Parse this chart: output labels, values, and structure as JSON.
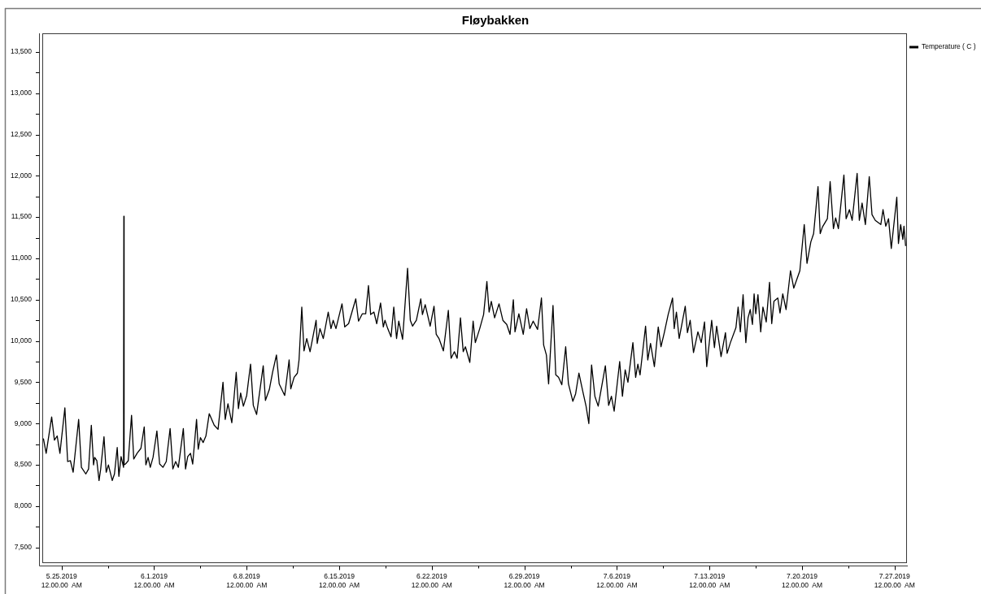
{
  "chart_data": {
    "type": "line",
    "title": "Fløybakken",
    "legend": "top right",
    "marker": "none",
    "line_style": "solid",
    "xlim": [
      "2019-05-23T13:00",
      "2019-07-27T21:00"
    ],
    "ylim": [
      7320,
      13725
    ],
    "xticks": [
      {
        "value": "2019-05-25",
        "label": "5.25.2019\n12.00.00  AM"
      },
      {
        "value": "2019-05-28T12:00",
        "label": null
      },
      {
        "value": "2019-06-01",
        "label": "6.1.2019\n12.00.00  AM"
      },
      {
        "value": "2019-06-04T12:00",
        "label": null
      },
      {
        "value": "2019-06-08",
        "label": "6.8.2019\n12.00.00  AM"
      },
      {
        "value": "2019-06-11T12:00",
        "label": null
      },
      {
        "value": "2019-06-15",
        "label": "6.15.2019\n12.00.00  AM"
      },
      {
        "value": "2019-06-18T12:00",
        "label": null
      },
      {
        "value": "2019-06-22",
        "label": "6.22.2019\n12.00.00  AM"
      },
      {
        "value": "2019-06-25T12:00",
        "label": null
      },
      {
        "value": "2019-06-29",
        "label": "6.29.2019\n12.00.00  AM"
      },
      {
        "value": "2019-07-02T12:00",
        "label": null
      },
      {
        "value": "2019-07-06",
        "label": "7.6.2019\n12.00.00  AM"
      },
      {
        "value": "2019-07-09T12:00",
        "label": null
      },
      {
        "value": "2019-07-13",
        "label": "7.13.2019\n12.00.00  AM"
      },
      {
        "value": "2019-07-16T12:00",
        "label": null
      },
      {
        "value": "2019-07-20",
        "label": "7.20.2019\n12.00.00  AM"
      },
      {
        "value": "2019-07-23T12:00",
        "label": null
      },
      {
        "value": "2019-07-27",
        "label": "7.27.2019\n12.00.00  AM"
      }
    ],
    "yticks": [
      {
        "value": 7500,
        "label": "7,500"
      },
      {
        "value": 7750,
        "label": null
      },
      {
        "value": 8000,
        "label": "8,000"
      },
      {
        "value": 8250,
        "label": null
      },
      {
        "value": 8500,
        "label": "8,500"
      },
      {
        "value": 8750,
        "label": null
      },
      {
        "value": 9000,
        "label": "9,000"
      },
      {
        "value": 9250,
        "label": null
      },
      {
        "value": 9500,
        "label": "9,500"
      },
      {
        "value": 9750,
        "label": null
      },
      {
        "value": 10000,
        "label": "10,000"
      },
      {
        "value": 10250,
        "label": null
      },
      {
        "value": 10500,
        "label": "10,500"
      },
      {
        "value": 10750,
        "label": null
      },
      {
        "value": 11000,
        "label": "11,000"
      },
      {
        "value": 11250,
        "label": null
      },
      {
        "value": 11500,
        "label": "11,500"
      },
      {
        "value": 11750,
        "label": null
      },
      {
        "value": 12000,
        "label": "12,000"
      },
      {
        "value": 12250,
        "label": null
      },
      {
        "value": 12500,
        "label": "12,500"
      },
      {
        "value": 12750,
        "label": null
      },
      {
        "value": 13000,
        "label": "13,000"
      },
      {
        "value": 13250,
        "label": null
      },
      {
        "value": 13500,
        "label": "13,500"
      }
    ],
    "x": [
      "2019-05-23T15:00",
      "2019-05-23T20:00",
      "2019-05-24T06:00",
      "2019-05-24T11:00",
      "2019-05-24T16:00",
      "2019-05-24T21:00",
      "2019-05-25T06:00",
      "2019-05-25T11:00",
      "2019-05-25T16:00",
      "2019-05-25T21:00",
      "2019-05-26T07:00",
      "2019-05-26T12:00",
      "2019-05-26T20:00",
      "2019-05-27T01:00",
      "2019-05-27T06:00",
      "2019-05-27T10:00",
      "2019-05-27T12:00",
      "2019-05-27T16:00",
      "2019-05-27T20:00",
      "2019-05-27T23:00",
      "2019-05-28T05:00",
      "2019-05-28T09:00",
      "2019-05-28T13:00",
      "2019-05-28T20:00",
      "2019-05-29T00:00",
      "2019-05-29T05:00",
      "2019-05-29T08:00",
      "2019-05-29T12:00",
      "2019-05-29T16:30",
      "2019-05-29T17:00",
      "2019-05-29T17:30",
      "2019-05-29T20:00",
      "2019-05-30T01:00",
      "2019-05-30T07:00",
      "2019-05-30T11:00",
      "2019-05-30T17:00",
      "2019-05-31T00:00",
      "2019-05-31T06:00",
      "2019-05-31T09:00",
      "2019-05-31T13:00",
      "2019-05-31T17:00",
      "2019-05-31T22:00",
      "2019-06-01T05:00",
      "2019-06-01T10:00",
      "2019-06-01T16:00",
      "2019-06-01T22:00",
      "2019-06-02T05:00",
      "2019-06-02T10:00",
      "2019-06-02T15:00",
      "2019-06-02T20:00",
      "2019-06-03T05:00",
      "2019-06-03T09:00",
      "2019-06-03T13:00",
      "2019-06-03T18:00",
      "2019-06-03T22:00",
      "2019-06-04T05:00",
      "2019-06-04T08:00",
      "2019-06-04T12:00",
      "2019-06-04T17:00",
      "2019-06-04T22:00",
      "2019-06-05T04:00",
      "2019-06-05T13:00",
      "2019-06-05T20:00",
      "2019-06-06T05:00",
      "2019-06-06T09:00",
      "2019-06-06T14:00",
      "2019-06-06T21:00",
      "2019-06-07T05:00",
      "2019-06-07T09:00",
      "2019-06-07T13:00",
      "2019-06-07T18:00",
      "2019-06-08T00:00",
      "2019-06-08T07:00",
      "2019-06-08T12:00",
      "2019-06-08T18:00",
      "2019-06-09T06:00",
      "2019-06-09T10:00",
      "2019-06-09T17:00",
      "2019-06-09T23:00",
      "2019-06-10T06:00",
      "2019-06-10T11:00",
      "2019-06-10T21:00",
      "2019-06-11T05:00",
      "2019-06-11T08:00",
      "2019-06-11T14:00",
      "2019-06-11T20:00",
      "2019-06-11T23:00",
      "2019-06-12T04:00",
      "2019-06-12T08:00",
      "2019-06-12T13:00",
      "2019-06-12T19:00",
      "2019-06-13T06:00",
      "2019-06-13T08:00",
      "2019-06-13T13:00",
      "2019-06-13T19:00",
      "2019-06-14T04:00",
      "2019-06-14T09:00",
      "2019-06-14T13:00",
      "2019-06-14T18:00",
      "2019-06-15T05:00",
      "2019-06-15T10:00",
      "2019-06-15T17:00",
      "2019-06-16T06:00",
      "2019-06-16T11:00",
      "2019-06-16T18:00",
      "2019-06-17T00:00",
      "2019-06-17T05:00",
      "2019-06-17T09:00",
      "2019-06-17T15:00",
      "2019-06-17T20:00",
      "2019-06-18T03:00",
      "2019-06-18T08:00",
      "2019-06-18T11:00",
      "2019-06-18T16:00",
      "2019-06-18T22:00",
      "2019-06-19T03:00",
      "2019-06-19T08:00",
      "2019-06-19T12:00",
      "2019-06-19T19:00",
      "2019-06-20T04:00",
      "2019-06-20T09:00",
      "2019-06-20T13:00",
      "2019-06-20T20:00",
      "2019-06-21T04:00",
      "2019-06-21T07:00",
      "2019-06-21T12:00",
      "2019-06-21T21:00",
      "2019-06-22T04:00",
      "2019-06-22T08:00",
      "2019-06-22T13:00",
      "2019-06-22T21:00",
      "2019-06-23T06:00",
      "2019-06-23T11:00",
      "2019-06-23T17:00",
      "2019-06-23T22:00",
      "2019-06-24T04:00",
      "2019-06-24T09:00",
      "2019-06-24T13:00",
      "2019-06-24T21:00",
      "2019-06-25T03:00",
      "2019-06-25T07:00",
      "2019-06-25T15:00",
      "2019-06-25T22:00",
      "2019-06-26T04:00",
      "2019-06-26T08:00",
      "2019-06-26T12:00",
      "2019-06-26T18:00",
      "2019-06-27T02:00",
      "2019-06-27T09:00",
      "2019-06-27T16:00",
      "2019-06-27T22:00",
      "2019-06-28T04:00",
      "2019-06-28T07:00",
      "2019-06-28T14:00",
      "2019-06-28T22:00",
      "2019-06-29T04:00",
      "2019-06-29T10:00",
      "2019-06-29T16:00",
      "2019-06-30T00:00",
      "2019-06-30T07:00",
      "2019-06-30T11:00",
      "2019-06-30T16:00",
      "2019-06-30T20:00",
      "2019-07-01T04:00",
      "2019-07-01T09:00",
      "2019-07-01T14:00",
      "2019-07-01T20:00",
      "2019-07-02T03:00",
      "2019-07-02T08:00",
      "2019-07-02T16:00",
      "2019-07-02T21:00",
      "2019-07-03T03:00",
      "2019-07-03T11:00",
      "2019-07-03T16:00",
      "2019-07-03T21:00",
      "2019-07-04T02:00",
      "2019-07-04T08:00",
      "2019-07-04T14:00",
      "2019-07-05T03:00",
      "2019-07-05T09:00",
      "2019-07-05T14:00",
      "2019-07-05T19:00",
      "2019-07-06T05:00",
      "2019-07-06T10:00",
      "2019-07-06T15:00",
      "2019-07-06T20:00",
      "2019-07-07T05:00",
      "2019-07-07T10:00",
      "2019-07-07T14:00",
      "2019-07-07T18:00",
      "2019-07-08T04:00",
      "2019-07-08T08:00",
      "2019-07-08T13:00",
      "2019-07-08T20:00",
      "2019-07-09T03:00",
      "2019-07-09T08:00",
      "2019-07-09T14:00",
      "2019-07-09T21:00",
      "2019-07-10T05:00",
      "2019-07-10T08:00",
      "2019-07-10T12:00",
      "2019-07-10T17:00",
      "2019-07-11T04:00",
      "2019-07-11T08:00",
      "2019-07-11T13:00",
      "2019-07-11T19:00",
      "2019-07-12T03:00",
      "2019-07-12T09:00",
      "2019-07-12T15:00",
      "2019-07-12T19:00",
      "2019-07-13T04:00",
      "2019-07-13T09:00",
      "2019-07-13T13:00",
      "2019-07-13T21:00",
      "2019-07-14T05:00",
      "2019-07-14T08:00",
      "2019-07-14T14:00",
      "2019-07-15T00:00",
      "2019-07-15T04:00",
      "2019-07-15T08:00",
      "2019-07-15T13:00",
      "2019-07-15T18:00",
      "2019-07-15T22:00",
      "2019-07-16T02:00",
      "2019-07-16T06:00",
      "2019-07-16T09:00",
      "2019-07-16T12:00",
      "2019-07-16T16:00",
      "2019-07-16T21:00",
      "2019-07-17T01:00",
      "2019-07-17T07:00",
      "2019-07-17T13:00",
      "2019-07-17T17:00",
      "2019-07-17T21:00",
      "2019-07-18T04:00",
      "2019-07-18T08:00",
      "2019-07-18T13:00",
      "2019-07-18T19:00",
      "2019-07-19T03:00",
      "2019-07-19T09:00",
      "2019-07-19T20:00",
      "2019-07-20T04:00",
      "2019-07-20T09:00",
      "2019-07-20T16:00",
      "2019-07-20T21:00",
      "2019-07-21T05:00",
      "2019-07-21T09:00",
      "2019-07-21T13:00",
      "2019-07-21T22:00",
      "2019-07-22T03:00",
      "2019-07-22T09:00",
      "2019-07-22T13:00",
      "2019-07-22T18:00",
      "2019-07-23T04:00",
      "2019-07-23T08:00",
      "2019-07-23T14:00",
      "2019-07-23T19:00",
      "2019-07-24T04:00",
      "2019-07-24T08:00",
      "2019-07-24T13:00",
      "2019-07-24T19:00",
      "2019-07-25T02:00",
      "2019-07-25T07:00",
      "2019-07-25T13:00",
      "2019-07-25T23:00",
      "2019-07-26T03:00",
      "2019-07-26T08:00",
      "2019-07-26T13:00",
      "2019-07-26T18:00",
      "2019-07-27T04:00",
      "2019-07-27T07:00",
      "2019-07-27T11:00",
      "2019-07-27T15:00",
      "2019-07-27T17:00",
      "2019-07-27T20:00"
    ],
    "series": [
      {
        "name": "Temperature ( C )",
        "color": "#000000",
        "values": [
          8820,
          8640,
          9080,
          8800,
          8850,
          8640,
          9190,
          8540,
          8550,
          8410,
          9050,
          8470,
          8390,
          8450,
          8980,
          8500,
          8590,
          8550,
          8310,
          8450,
          8840,
          8410,
          8500,
          8310,
          8390,
          8710,
          8360,
          8600,
          8470,
          11510,
          8500,
          8510,
          8550,
          9100,
          8570,
          8640,
          8700,
          8960,
          8500,
          8590,
          8470,
          8590,
          8910,
          8510,
          8470,
          8540,
          8940,
          8450,
          8540,
          8470,
          8940,
          8450,
          8600,
          8640,
          8510,
          9050,
          8690,
          8830,
          8770,
          8850,
          9120,
          8980,
          8930,
          9500,
          9050,
          9240,
          9010,
          9620,
          9180,
          9370,
          9210,
          9340,
          9720,
          9220,
          9110,
          9700,
          9280,
          9410,
          9620,
          9830,
          9480,
          9340,
          9770,
          9420,
          9560,
          9610,
          9770,
          10410,
          9880,
          10030,
          9870,
          10250,
          9970,
          10150,
          10030,
          10350,
          10150,
          10250,
          10150,
          10450,
          10170,
          10210,
          10510,
          10240,
          10330,
          10330,
          10670,
          10320,
          10350,
          10210,
          10460,
          10170,
          10250,
          10150,
          10050,
          10410,
          10030,
          10240,
          10020,
          10880,
          10250,
          10180,
          10250,
          10510,
          10320,
          10440,
          10180,
          10420,
          10080,
          10030,
          9880,
          10370,
          9790,
          9870,
          9790,
          10280,
          9870,
          9930,
          9740,
          10240,
          9980,
          10150,
          10320,
          10720,
          10350,
          10480,
          10280,
          10450,
          10250,
          10200,
          10080,
          10500,
          10110,
          10330,
          10080,
          10390,
          10150,
          10240,
          10140,
          10520,
          9950,
          9830,
          9480,
          10430,
          9590,
          9560,
          9470,
          9930,
          9480,
          9270,
          9360,
          9610,
          9360,
          9210,
          9000,
          9710,
          9330,
          9210,
          9700,
          9220,
          9330,
          9150,
          9750,
          9330,
          9650,
          9500,
          9980,
          9560,
          9720,
          9590,
          10180,
          9770,
          9970,
          9690,
          10170,
          9930,
          10100,
          10320,
          10520,
          10150,
          10350,
          10030,
          10420,
          10100,
          10250,
          9860,
          10110,
          9980,
          10230,
          9690,
          10250,
          9920,
          10180,
          9810,
          10100,
          9850,
          9980,
          10160,
          10410,
          10110,
          10560,
          9980,
          10280,
          10380,
          10200,
          10570,
          10330,
          10560,
          10110,
          10410,
          10230,
          10710,
          10210,
          10480,
          10520,
          10340,
          10570,
          10380,
          10850,
          10640,
          10850,
          11410,
          10940,
          11200,
          11300,
          11870,
          11300,
          11380,
          11480,
          11930,
          11360,
          11490,
          11360,
          12010,
          11480,
          11590,
          11460,
          12030,
          11460,
          11670,
          11410,
          11990,
          11530,
          11460,
          11410,
          11590,
          11390,
          11480,
          11120,
          11740,
          11180,
          11410,
          11230,
          11390,
          11150
        ]
      }
    ]
  }
}
